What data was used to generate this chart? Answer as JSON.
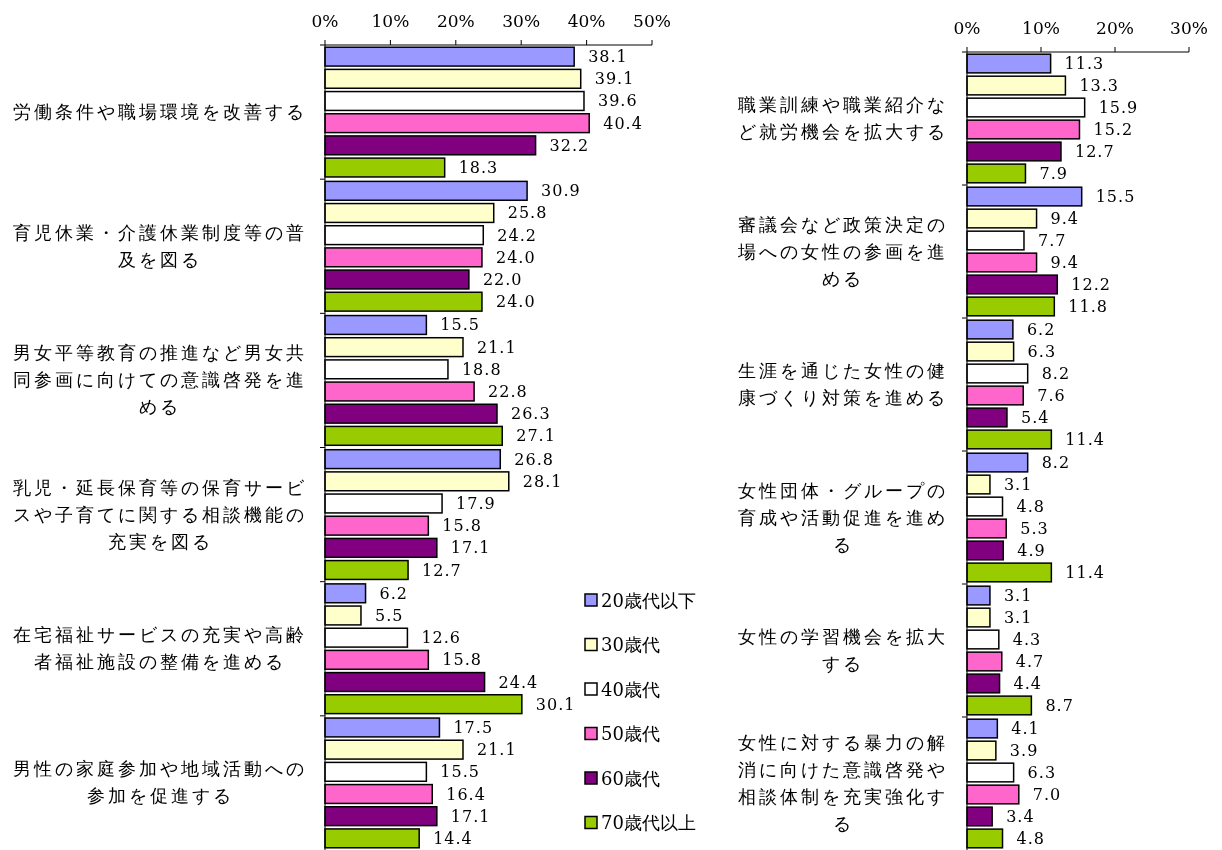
{
  "chart_data": [
    {
      "type": "bar",
      "orientation": "horizontal",
      "categories": [
        "労働条件や職場環境を改善する",
        "育児休業・介護休業制度等の普及を図る",
        "男女平等教育の推進など男女共同参画に向けての意識啓発を進める",
        "乳児・延長保育等の保育サービスや子育てに関する相談機能の充実を図る",
        "在宅福祉サービスの充実や高齢者福祉施設の整備を進める",
        "男性の家庭参加や地域活動への参加を促進する"
      ],
      "xlim": [
        0,
        50
      ],
      "xticks": [
        {
          "value": 0,
          "label": "0%"
        },
        {
          "value": 10,
          "label": "10%"
        },
        {
          "value": 20,
          "label": "20%"
        },
        {
          "value": 30,
          "label": "30%"
        },
        {
          "value": 40,
          "label": "40%"
        },
        {
          "value": 50,
          "label": "50%"
        }
      ],
      "legend": "right",
      "grid": false,
      "series": [
        {
          "name": "20歳代以下",
          "color": "#9999ff",
          "values": [
            38.1,
            30.9,
            15.5,
            26.8,
            6.2,
            17.5
          ],
          "value_labels": [
            "38.1",
            "30.9",
            "15.5",
            "26.8",
            "6.2",
            "17.5"
          ]
        },
        {
          "name": "30歳代",
          "color": "#ffffcc",
          "values": [
            39.1,
            25.8,
            21.1,
            28.1,
            5.5,
            21.1
          ],
          "value_labels": [
            "39.1",
            "25.8",
            "21.1",
            "28.1",
            "5.5",
            "21.1"
          ]
        },
        {
          "name": "40歳代",
          "color": "#ffffff",
          "values": [
            39.6,
            24.2,
            18.8,
            17.9,
            12.6,
            15.5
          ],
          "value_labels": [
            "39.6",
            "24.2",
            "18.8",
            "17.9",
            "12.6",
            "15.5"
          ]
        },
        {
          "name": "50歳代",
          "color": "#ff66cc",
          "values": [
            40.4,
            24.0,
            22.8,
            15.8,
            15.8,
            16.4
          ],
          "value_labels": [
            "40.4",
            "24.0",
            "22.8",
            "15.8",
            "15.8",
            "16.4"
          ]
        },
        {
          "name": "60歳代",
          "color": "#800080",
          "values": [
            32.2,
            22.0,
            26.3,
            17.1,
            24.4,
            17.1
          ],
          "value_labels": [
            "32.2",
            "22.0",
            "26.3",
            "17.1",
            "24.4",
            "17.1"
          ]
        },
        {
          "name": "70歳代以上",
          "color": "#99cc00",
          "values": [
            18.3,
            24.0,
            27.1,
            12.7,
            30.1,
            14.4
          ],
          "value_labels": [
            "18.3",
            "24.0",
            "27.1",
            "12.7",
            "30.1",
            "14.4"
          ]
        }
      ]
    },
    {
      "type": "bar",
      "orientation": "horizontal",
      "categories": [
        "職業訓練や職業紹介など就労機会を拡大する",
        "審議会など政策決定の場への女性の参画を進める",
        "生涯を通じた女性の健康づくり対策を進める",
        "女性団体・グループの育成や活動促進を進める",
        "女性の学習機会を拡大する",
        "女性に対する暴力の解消に向けた意識啓発や相談体制を充実強化する"
      ],
      "xlim": [
        0,
        30
      ],
      "xticks": [
        {
          "value": 0,
          "label": "0%"
        },
        {
          "value": 10,
          "label": "10%"
        },
        {
          "value": 20,
          "label": "20%"
        },
        {
          "value": 30,
          "label": "30%"
        }
      ],
      "grid": false,
      "series": [
        {
          "color": "#9999ff",
          "values": [
            11.3,
            15.5,
            6.2,
            8.2,
            3.1,
            4.1
          ],
          "value_labels": [
            "11.3",
            "15.5",
            "6.2",
            "8.2",
            "3.1",
            "4.1"
          ]
        },
        {
          "color": "#ffffcc",
          "values": [
            13.3,
            9.4,
            6.3,
            3.1,
            3.1,
            3.9
          ],
          "value_labels": [
            "13.3",
            "9.4",
            "6.3",
            "3.1",
            "3.1",
            "3.9"
          ]
        },
        {
          "color": "#ffffff",
          "values": [
            15.9,
            7.7,
            8.2,
            4.8,
            4.3,
            6.3
          ],
          "value_labels": [
            "15.9",
            "7.7",
            "8.2",
            "4.8",
            "4.3",
            "6.3"
          ]
        },
        {
          "color": "#ff66cc",
          "values": [
            15.2,
            9.4,
            7.6,
            5.3,
            4.7,
            7.0
          ],
          "value_labels": [
            "15.2",
            "9.4",
            "7.6",
            "5.3",
            "4.7",
            "7.0"
          ]
        },
        {
          "color": "#800080",
          "values": [
            12.7,
            12.2,
            5.4,
            4.9,
            4.4,
            3.4
          ],
          "value_labels": [
            "12.7",
            "12.2",
            "5.4",
            "4.9",
            "4.4",
            "3.4"
          ]
        },
        {
          "color": "#99cc00",
          "values": [
            7.9,
            11.8,
            11.4,
            11.4,
            8.7,
            4.8
          ],
          "value_labels": [
            "7.9",
            "11.8",
            "11.4",
            "11.4",
            "8.7",
            "4.8"
          ]
        }
      ]
    }
  ]
}
